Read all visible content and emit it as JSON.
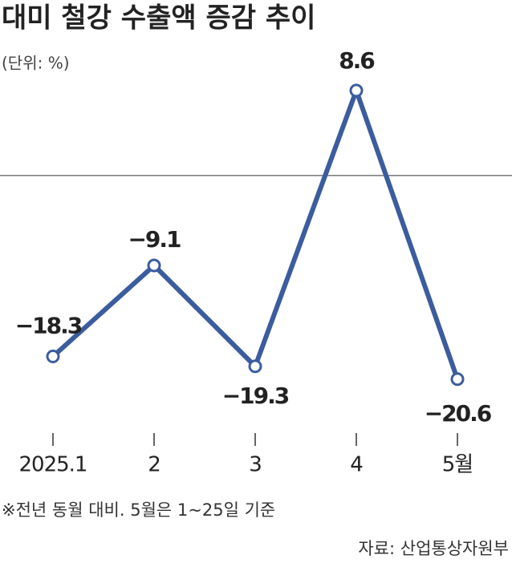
{
  "chart_data": {
    "type": "line",
    "title": "대미 철강 수출액 증감 추이",
    "subtitle": "(단위: %)",
    "categories": [
      "2025.1",
      "2",
      "3",
      "4",
      "5월"
    ],
    "values": [
      -18.3,
      -9.1,
      -19.3,
      8.6,
      -20.6
    ],
    "value_labels": [
      "−18.3",
      "−9.1",
      "−19.3",
      "8.6",
      "−20.6"
    ],
    "color": "#3b5c9e",
    "ylim": [
      -25,
      12
    ],
    "note": "※전년 동월 대비. 5월은 1~25일 기준",
    "source": "자료: 산업통상자원부"
  }
}
